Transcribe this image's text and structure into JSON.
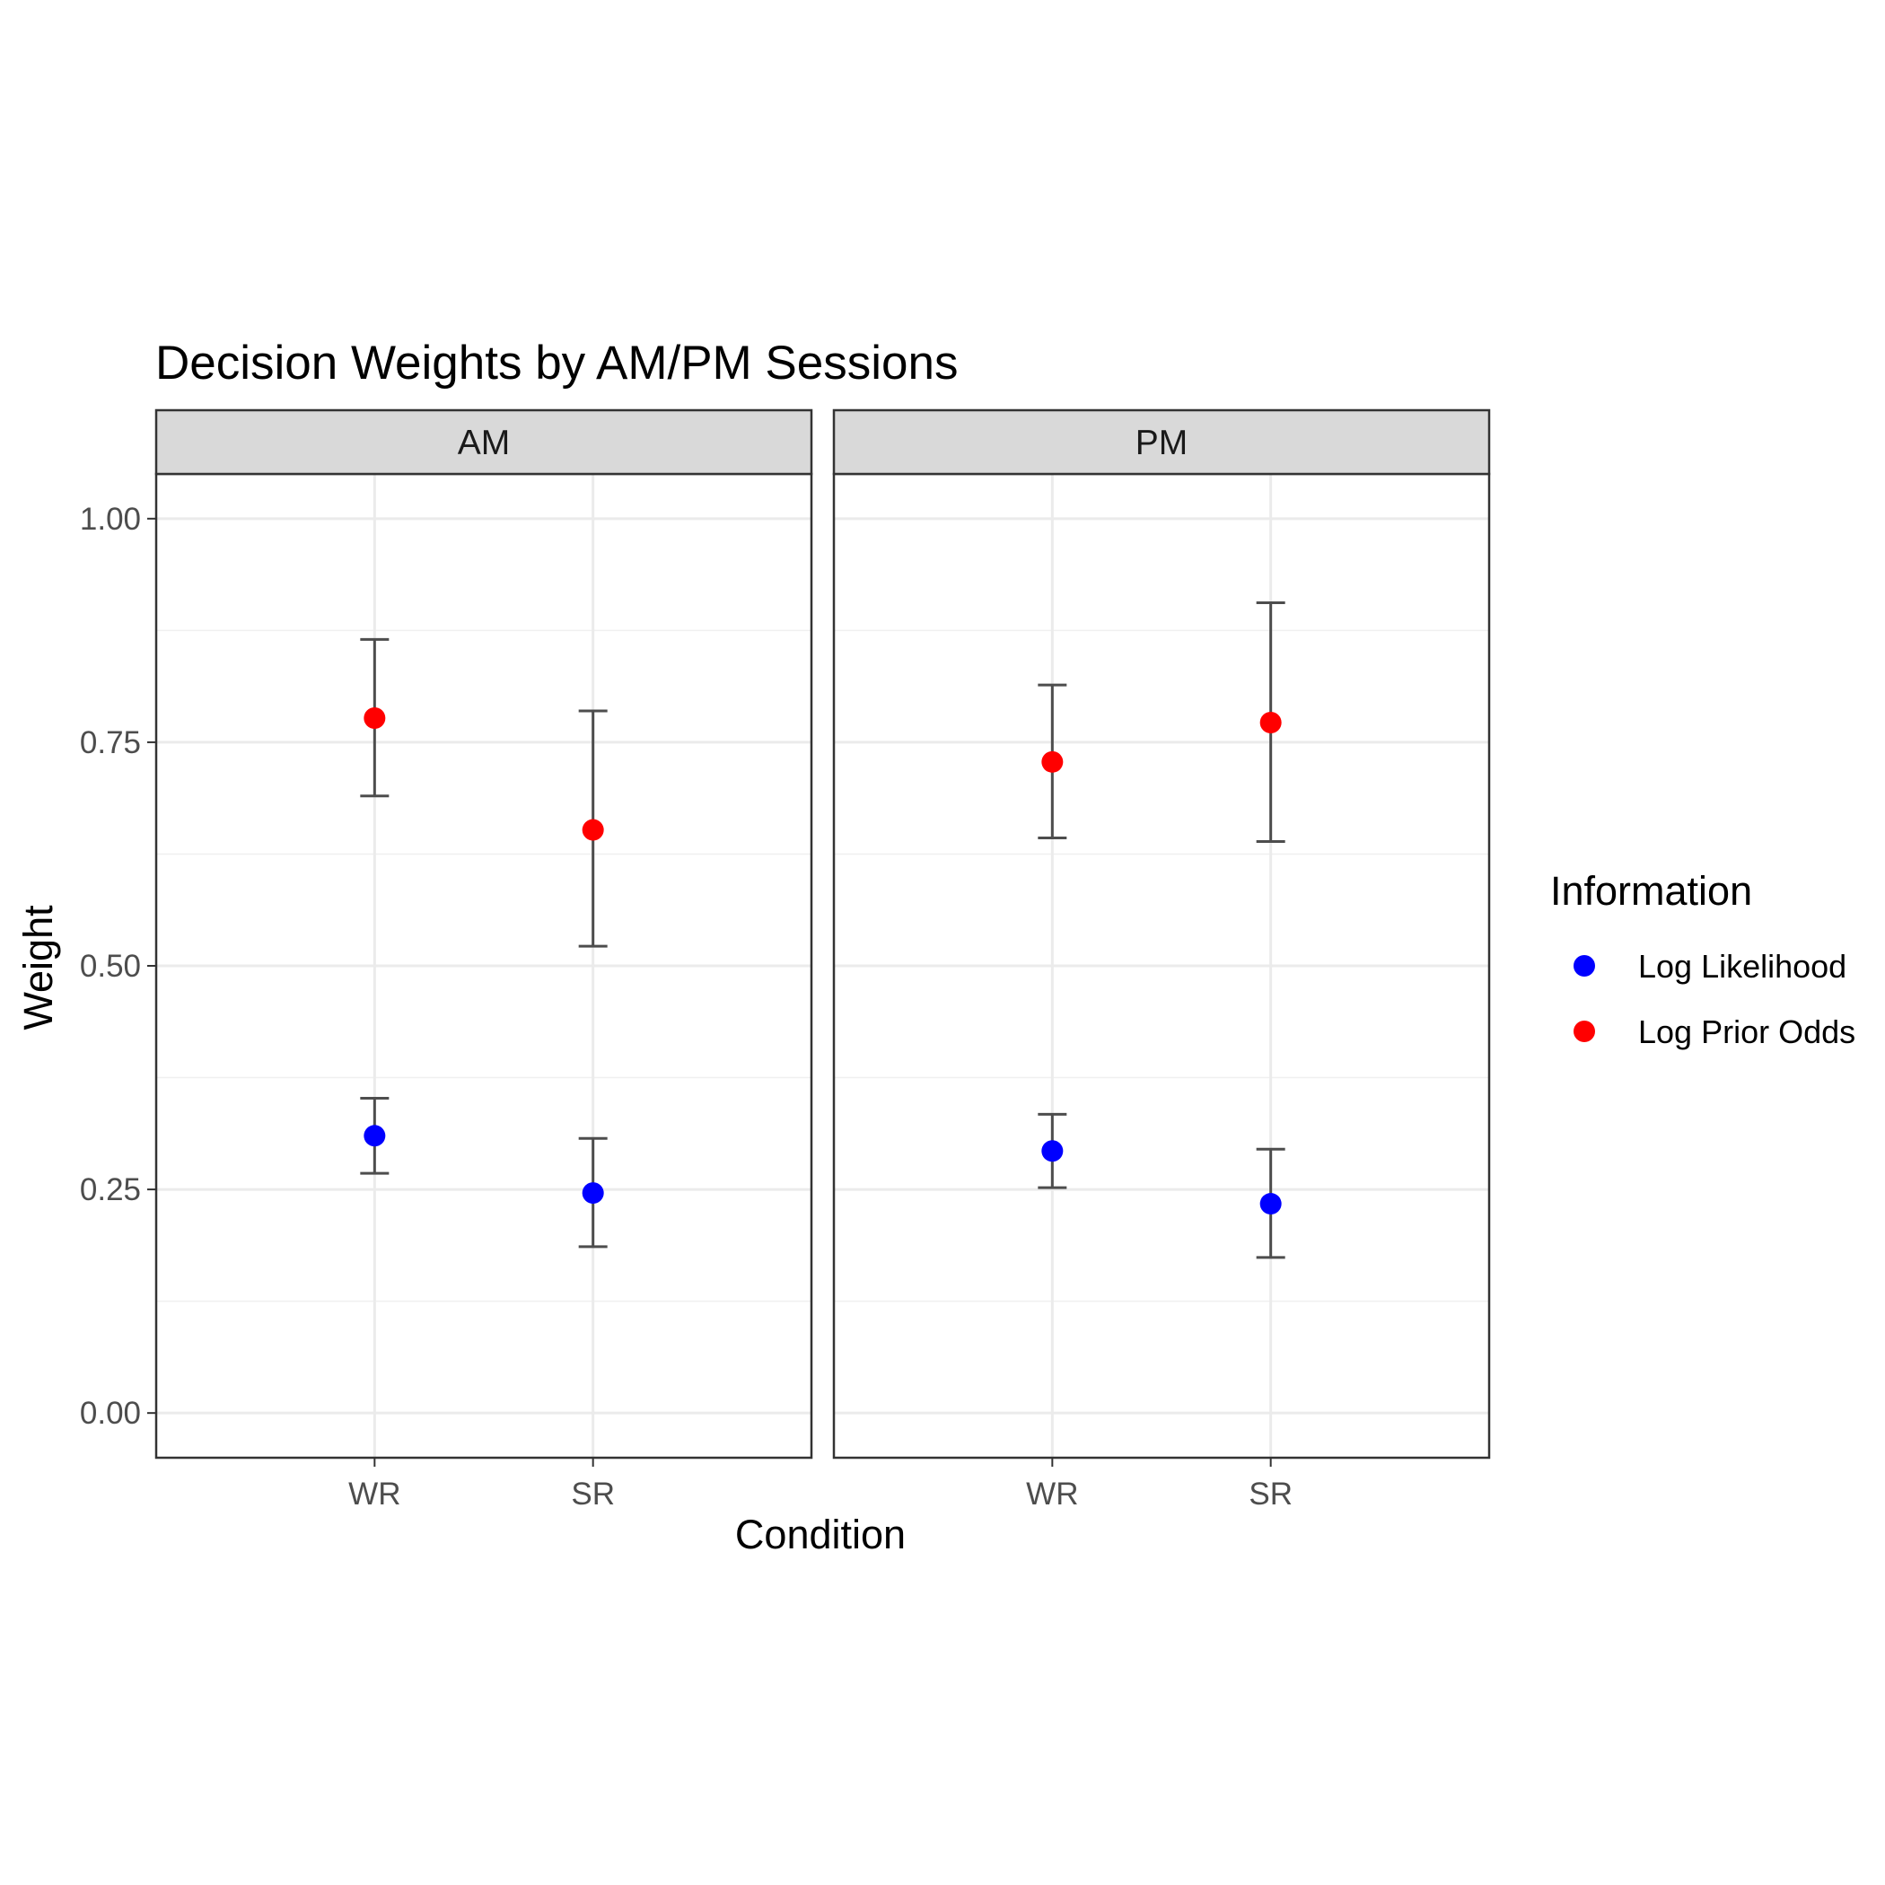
{
  "chart_data": {
    "type": "scatter",
    "title": "Decision Weights by AM/PM Sessions",
    "xlabel": "Condition",
    "ylabel": "Weight",
    "ylim": [
      -0.05,
      1.05
    ],
    "yticks": [
      "0.00",
      "0.25",
      "0.50",
      "0.75",
      "1.00"
    ],
    "categories": [
      "WR",
      "SR"
    ],
    "grid": true,
    "legend": {
      "title": "Information",
      "position": "right"
    },
    "facets": [
      {
        "label": "AM",
        "series": [
          {
            "name": "Log Likelihood",
            "color": "#0000FF",
            "points": [
              {
                "x": "WR",
                "y": 0.31,
                "ymin": 0.268,
                "ymax": 0.352
              },
              {
                "x": "SR",
                "y": 0.246,
                "ymin": 0.186,
                "ymax": 0.307
              }
            ]
          },
          {
            "name": "Log Prior Odds",
            "color": "#FF0000",
            "points": [
              {
                "x": "WR",
                "y": 0.777,
                "ymin": 0.69,
                "ymax": 0.865
              },
              {
                "x": "SR",
                "y": 0.652,
                "ymin": 0.522,
                "ymax": 0.785
              }
            ]
          }
        ]
      },
      {
        "label": "PM",
        "series": [
          {
            "name": "Log Likelihood",
            "color": "#0000FF",
            "points": [
              {
                "x": "WR",
                "y": 0.293,
                "ymin": 0.252,
                "ymax": 0.334
              },
              {
                "x": "SR",
                "y": 0.234,
                "ymin": 0.174,
                "ymax": 0.295
              }
            ]
          },
          {
            "name": "Log Prior Odds",
            "color": "#FF0000",
            "points": [
              {
                "x": "WR",
                "y": 0.728,
                "ymin": 0.643,
                "ymax": 0.814
              },
              {
                "x": "SR",
                "y": 0.772,
                "ymin": 0.639,
                "ymax": 0.906
              }
            ]
          }
        ]
      }
    ]
  }
}
